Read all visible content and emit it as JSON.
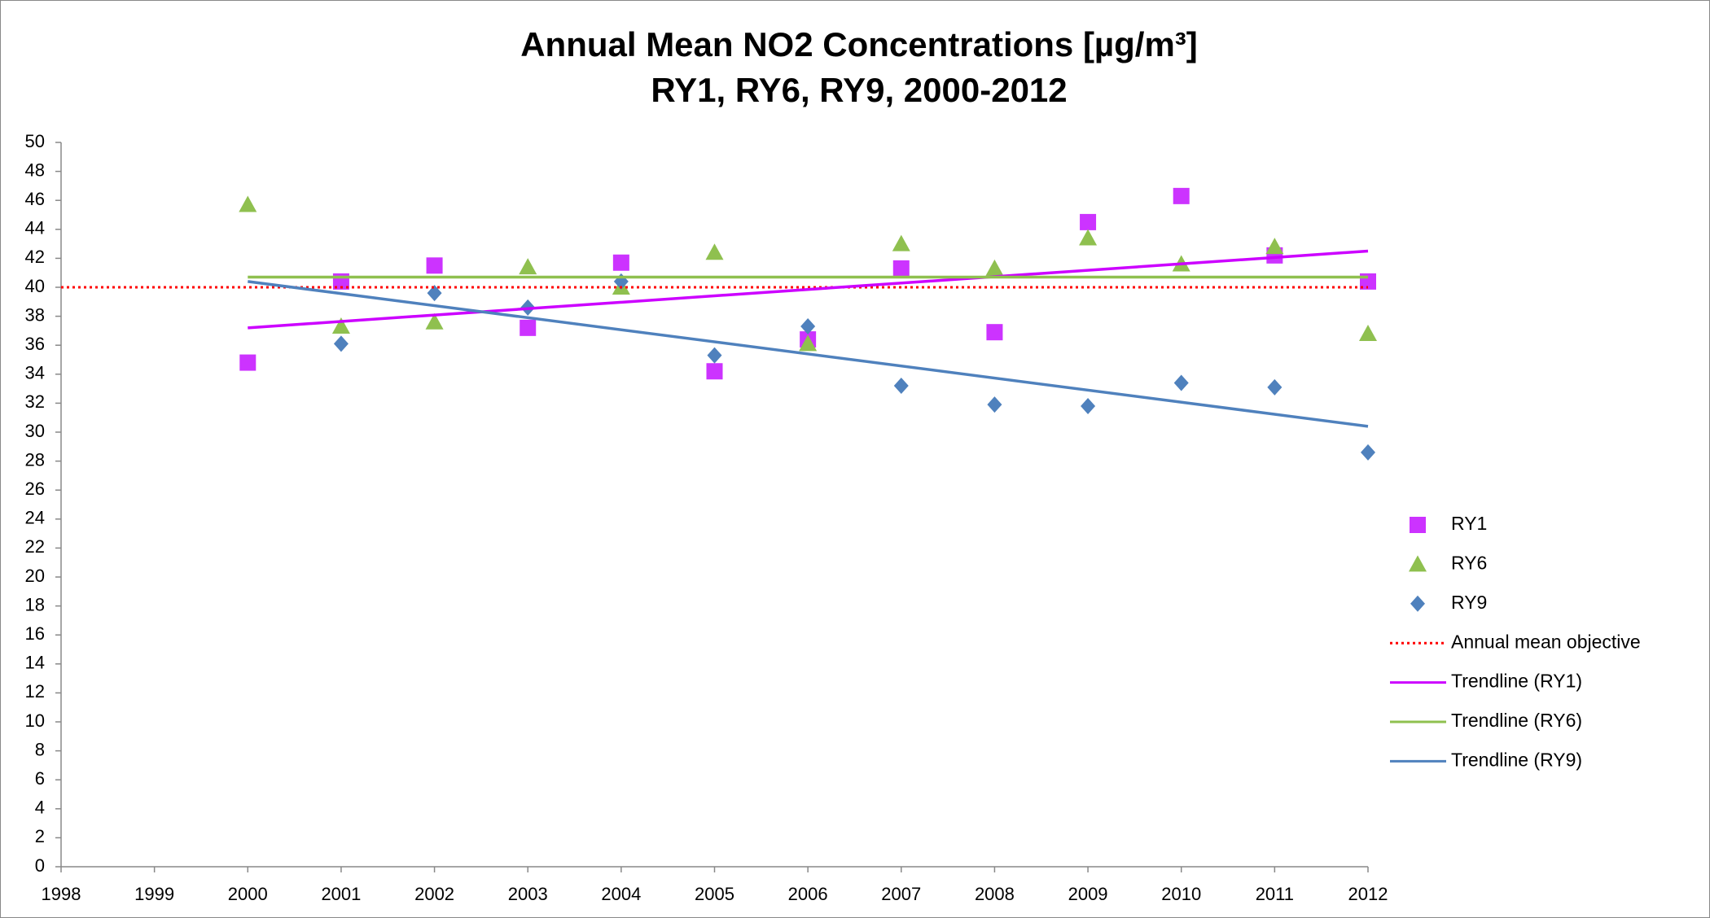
{
  "chart_data": {
    "type": "scatter",
    "title": "Annual Mean NO2 Concentrations [µg/m³]",
    "subtitle": "RY1, RY6, RY9, 2000-2012",
    "xlim": [
      1998,
      2012
    ],
    "xticks": [
      1998,
      1999,
      2000,
      2001,
      2002,
      2003,
      2004,
      2005,
      2006,
      2007,
      2008,
      2009,
      2010,
      2011,
      2012
    ],
    "ylim": [
      0,
      50
    ],
    "yticks": [
      0,
      2,
      4,
      6,
      8,
      10,
      12,
      14,
      16,
      18,
      20,
      22,
      24,
      26,
      28,
      30,
      32,
      34,
      36,
      38,
      40,
      42,
      44,
      46,
      48,
      50
    ],
    "grid": false,
    "legend": "right",
    "series": [
      {
        "name": "RY1",
        "color": "#cc33ff",
        "marker": "square",
        "x": [
          2000,
          2001,
          2002,
          2003,
          2004,
          2005,
          2006,
          2007,
          2008,
          2009,
          2010,
          2011,
          2012
        ],
        "values": [
          34.8,
          40.4,
          41.5,
          37.2,
          41.7,
          34.2,
          36.4,
          41.3,
          36.9,
          44.5,
          46.3,
          42.2,
          40.4
        ]
      },
      {
        "name": "RY6",
        "color": "#8fc04f",
        "marker": "triangle",
        "x": [
          2000,
          2001,
          2002,
          2003,
          2004,
          2005,
          2006,
          2007,
          2008,
          2009,
          2010,
          2011,
          2012
        ],
        "values": [
          45.7,
          37.3,
          37.6,
          41.4,
          40.0,
          42.4,
          36.1,
          43.0,
          41.3,
          43.4,
          41.6,
          42.8,
          36.8
        ]
      },
      {
        "name": "RY9",
        "color": "#4f81bd",
        "marker": "diamond",
        "x": [
          2000,
          2001,
          2002,
          2003,
          2004,
          2005,
          2006,
          2007,
          2008,
          2009,
          2010,
          2011,
          2012
        ],
        "values": [
          null,
          36.1,
          39.6,
          38.6,
          40.4,
          35.3,
          37.3,
          33.2,
          31.9,
          31.8,
          33.4,
          33.1,
          28.6
        ]
      },
      {
        "name": "Annual mean objective",
        "color": "#ff0000",
        "line": "dotted",
        "x": [
          1998,
          2012
        ],
        "values": [
          40,
          40
        ]
      },
      {
        "name": "Trendline (RY1)",
        "color": "#cc00ff",
        "line": "solid",
        "x": [
          2000,
          2012
        ],
        "values": [
          37.2,
          42.5
        ]
      },
      {
        "name": "Trendline (RY6)",
        "color": "#8fc04f",
        "line": "solid",
        "x": [
          2000,
          2012
        ],
        "values": [
          40.7,
          40.7
        ]
      },
      {
        "name": "Trendline (RY9)",
        "color": "#4f81bd",
        "line": "solid",
        "x": [
          2000,
          2012
        ],
        "values": [
          40.4,
          30.4
        ]
      }
    ]
  }
}
